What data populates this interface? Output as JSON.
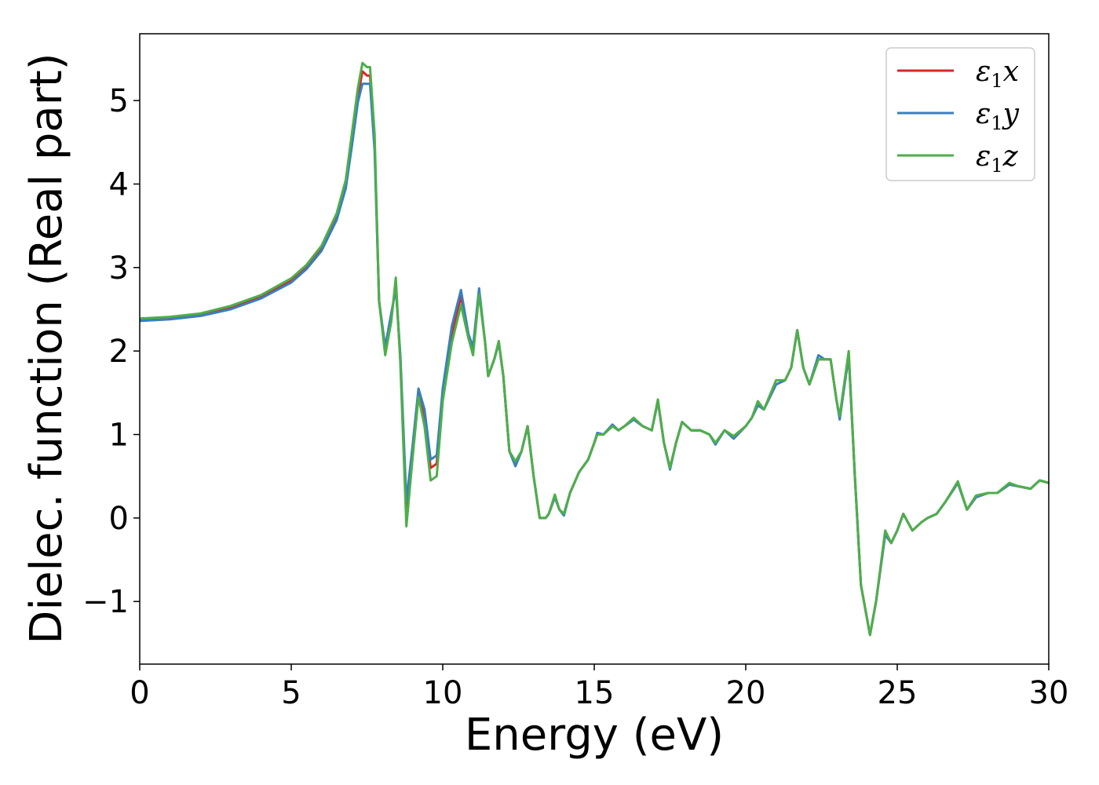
{
  "chart_data": {
    "type": "line",
    "xlabel": "Energy (eV)",
    "ylabel": "Dielec. function (Real part)",
    "xlim": [
      0,
      30
    ],
    "ylim": [
      -1.75,
      5.8
    ],
    "xticks": [
      0,
      5,
      10,
      15,
      20,
      25,
      30
    ],
    "yticks": [
      -1,
      0,
      1,
      2,
      3,
      4,
      5
    ],
    "ytick_labels": [
      "−1",
      "0",
      "1",
      "2",
      "3",
      "4",
      "5"
    ],
    "grid": false,
    "legend_position": "top-right",
    "series": [
      {
        "name": "x",
        "legend_symbol": "ε",
        "legend_sub": "1",
        "color": "#d62728",
        "x": [
          0,
          1,
          2,
          3,
          4,
          5,
          5.5,
          6,
          6.5,
          6.8,
          7.0,
          7.2,
          7.35,
          7.5,
          7.6,
          7.75,
          7.9,
          8.1,
          8.3,
          8.45,
          8.6,
          8.8,
          9.0,
          9.2,
          9.4,
          9.6,
          9.8,
          10.0,
          10.3,
          10.6,
          10.85,
          11.0,
          11.2,
          11.4,
          11.5,
          11.7,
          11.85,
          12.0,
          12.2,
          12.4,
          12.6,
          12.8,
          13.0,
          13.2,
          13.4,
          13.5,
          13.7,
          13.85,
          14.0,
          14.2,
          14.5,
          14.8,
          15.0,
          15.1,
          15.3,
          15.6,
          15.8,
          16.0,
          16.3,
          16.6,
          16.9,
          17.1,
          17.3,
          17.5,
          17.7,
          17.9,
          18.2,
          18.5,
          18.8,
          19.0,
          19.3,
          19.6,
          20.0,
          20.2,
          20.4,
          20.6,
          21.0,
          21.3,
          21.5,
          21.7,
          21.9,
          22.1,
          22.4,
          22.6,
          22.8,
          23.0,
          23.1,
          23.4,
          23.6,
          23.8,
          24.0,
          24.1,
          24.3,
          24.6,
          24.8,
          25.0,
          25.2,
          25.5,
          25.8,
          26.0,
          26.3,
          26.6,
          27.0,
          27.3,
          27.6,
          28.0,
          28.3,
          28.7,
          29.0,
          29.4,
          29.7,
          30.0
        ],
        "y": [
          2.38,
          2.4,
          2.44,
          2.52,
          2.65,
          2.84,
          3.0,
          3.22,
          3.6,
          4.0,
          4.5,
          5.05,
          5.35,
          5.3,
          5.3,
          4.5,
          2.6,
          2.0,
          2.4,
          2.8,
          1.9,
          0.1,
          0.8,
          1.5,
          1.2,
          0.6,
          0.65,
          1.5,
          2.2,
          2.65,
          2.2,
          2.0,
          2.72,
          2.1,
          1.7,
          1.9,
          2.1,
          1.7,
          0.8,
          0.65,
          0.8,
          1.1,
          0.5,
          0.0,
          0.0,
          0.05,
          0.25,
          0.1,
          0.05,
          0.3,
          0.55,
          0.7,
          0.9,
          1.0,
          1.0,
          1.1,
          1.05,
          1.1,
          1.18,
          1.1,
          1.05,
          1.4,
          0.9,
          0.6,
          0.9,
          1.15,
          1.05,
          1.05,
          1.0,
          0.9,
          1.05,
          0.98,
          1.1,
          1.2,
          1.35,
          1.3,
          1.6,
          1.65,
          1.8,
          2.25,
          1.8,
          1.6,
          1.9,
          1.9,
          1.9,
          1.4,
          1.2,
          1.95,
          0.5,
          -0.8,
          -1.2,
          -1.4,
          -1.0,
          -0.2,
          -0.3,
          -0.15,
          0.05,
          -0.15,
          -0.05,
          0.0,
          0.05,
          0.2,
          0.42,
          0.1,
          0.25,
          0.3,
          0.3,
          0.4,
          0.38,
          0.35,
          0.45,
          0.42
        ]
      },
      {
        "name": "y",
        "legend_symbol": "ε",
        "legend_sub": "1",
        "color": "#3a7fbf",
        "x": [
          0,
          1,
          2,
          3,
          4,
          5,
          5.5,
          6,
          6.5,
          6.8,
          7.0,
          7.2,
          7.35,
          7.5,
          7.6,
          7.75,
          7.9,
          8.1,
          8.3,
          8.45,
          8.6,
          8.8,
          9.0,
          9.2,
          9.4,
          9.6,
          9.8,
          10.0,
          10.3,
          10.6,
          10.85,
          11.0,
          11.2,
          11.4,
          11.5,
          11.7,
          11.85,
          12.0,
          12.2,
          12.4,
          12.6,
          12.8,
          13.0,
          13.2,
          13.4,
          13.5,
          13.7,
          13.85,
          14.0,
          14.2,
          14.5,
          14.8,
          15.0,
          15.1,
          15.3,
          15.6,
          15.8,
          16.0,
          16.3,
          16.6,
          16.9,
          17.1,
          17.3,
          17.5,
          17.7,
          17.9,
          18.2,
          18.5,
          18.8,
          19.0,
          19.3,
          19.6,
          20.0,
          20.2,
          20.4,
          20.6,
          21.0,
          21.3,
          21.5,
          21.7,
          21.9,
          22.1,
          22.4,
          22.6,
          22.8,
          23.0,
          23.1,
          23.4,
          23.6,
          23.8,
          24.0,
          24.1,
          24.3,
          24.6,
          24.8,
          25.0,
          25.2,
          25.5,
          25.8,
          26.0,
          26.3,
          26.6,
          27.0,
          27.3,
          27.6,
          28.0,
          28.3,
          28.7,
          29.0,
          29.4,
          29.7,
          30.0
        ],
        "y": [
          2.36,
          2.38,
          2.42,
          2.5,
          2.63,
          2.82,
          2.98,
          3.2,
          3.57,
          3.95,
          4.45,
          4.98,
          5.2,
          5.2,
          5.2,
          4.4,
          2.6,
          2.05,
          2.45,
          2.75,
          1.95,
          0.2,
          0.85,
          1.55,
          1.3,
          0.7,
          0.75,
          1.55,
          2.3,
          2.73,
          2.2,
          2.05,
          2.75,
          2.1,
          1.7,
          1.9,
          2.1,
          1.7,
          0.8,
          0.62,
          0.8,
          1.1,
          0.5,
          0.0,
          0.0,
          0.05,
          0.25,
          0.1,
          0.03,
          0.3,
          0.55,
          0.7,
          0.9,
          1.02,
          1.0,
          1.12,
          1.05,
          1.1,
          1.18,
          1.1,
          1.05,
          1.4,
          0.9,
          0.58,
          0.9,
          1.15,
          1.05,
          1.05,
          1.0,
          0.88,
          1.05,
          0.95,
          1.1,
          1.2,
          1.35,
          1.3,
          1.6,
          1.65,
          1.8,
          2.25,
          1.8,
          1.6,
          1.95,
          1.9,
          1.9,
          1.4,
          1.18,
          1.95,
          0.5,
          -0.8,
          -1.2,
          -1.4,
          -1.0,
          -0.2,
          -0.3,
          -0.15,
          0.05,
          -0.15,
          -0.05,
          0.0,
          0.05,
          0.2,
          0.42,
          0.1,
          0.25,
          0.3,
          0.3,
          0.4,
          0.38,
          0.35,
          0.45,
          0.42
        ]
      },
      {
        "name": "z",
        "legend_symbol": "ε",
        "legend_sub": "1",
        "color": "#4daf4a",
        "x": [
          0,
          1,
          2,
          3,
          4,
          5,
          5.5,
          6,
          6.5,
          6.8,
          7.0,
          7.2,
          7.35,
          7.5,
          7.6,
          7.75,
          7.9,
          8.1,
          8.3,
          8.45,
          8.6,
          8.8,
          9.0,
          9.2,
          9.4,
          9.6,
          9.8,
          10.0,
          10.3,
          10.6,
          10.85,
          11.0,
          11.2,
          11.4,
          11.5,
          11.7,
          11.85,
          12.0,
          12.2,
          12.4,
          12.6,
          12.8,
          13.0,
          13.2,
          13.4,
          13.5,
          13.7,
          13.85,
          14.0,
          14.2,
          14.5,
          14.8,
          15.0,
          15.1,
          15.3,
          15.6,
          15.8,
          16.0,
          16.3,
          16.6,
          16.9,
          17.1,
          17.3,
          17.5,
          17.7,
          17.9,
          18.2,
          18.5,
          18.8,
          19.0,
          19.3,
          19.6,
          20.0,
          20.2,
          20.4,
          20.6,
          21.0,
          21.3,
          21.5,
          21.7,
          21.9,
          22.1,
          22.4,
          22.6,
          22.8,
          23.0,
          23.1,
          23.4,
          23.6,
          23.8,
          24.0,
          24.1,
          24.3,
          24.6,
          24.8,
          25.0,
          25.2,
          25.5,
          25.8,
          26.0,
          26.3,
          26.6,
          27.0,
          27.3,
          27.6,
          28.0,
          28.3,
          28.7,
          29.0,
          29.4,
          29.7,
          30.0
        ],
        "y": [
          2.39,
          2.41,
          2.45,
          2.54,
          2.67,
          2.87,
          3.03,
          3.26,
          3.65,
          4.05,
          4.6,
          5.15,
          5.45,
          5.4,
          5.4,
          4.6,
          2.6,
          1.95,
          2.35,
          2.88,
          1.85,
          -0.1,
          0.7,
          1.45,
          1.1,
          0.45,
          0.5,
          1.4,
          2.1,
          2.55,
          2.15,
          1.95,
          2.68,
          2.1,
          1.7,
          1.9,
          2.12,
          1.7,
          0.8,
          0.68,
          0.8,
          1.1,
          0.5,
          0.0,
          0.0,
          0.05,
          0.28,
          0.1,
          0.05,
          0.3,
          0.55,
          0.7,
          0.9,
          1.0,
          1.0,
          1.1,
          1.05,
          1.1,
          1.2,
          1.1,
          1.05,
          1.42,
          0.9,
          0.6,
          0.9,
          1.15,
          1.05,
          1.05,
          1.0,
          0.9,
          1.05,
          0.98,
          1.1,
          1.2,
          1.4,
          1.3,
          1.65,
          1.65,
          1.8,
          2.25,
          1.8,
          1.6,
          1.9,
          1.9,
          1.9,
          1.4,
          1.22,
          2.0,
          0.5,
          -0.8,
          -1.2,
          -1.4,
          -1.0,
          -0.15,
          -0.3,
          -0.15,
          0.05,
          -0.15,
          -0.05,
          0.0,
          0.05,
          0.2,
          0.44,
          0.1,
          0.27,
          0.3,
          0.3,
          0.42,
          0.38,
          0.35,
          0.45,
          0.42
        ]
      }
    ]
  }
}
